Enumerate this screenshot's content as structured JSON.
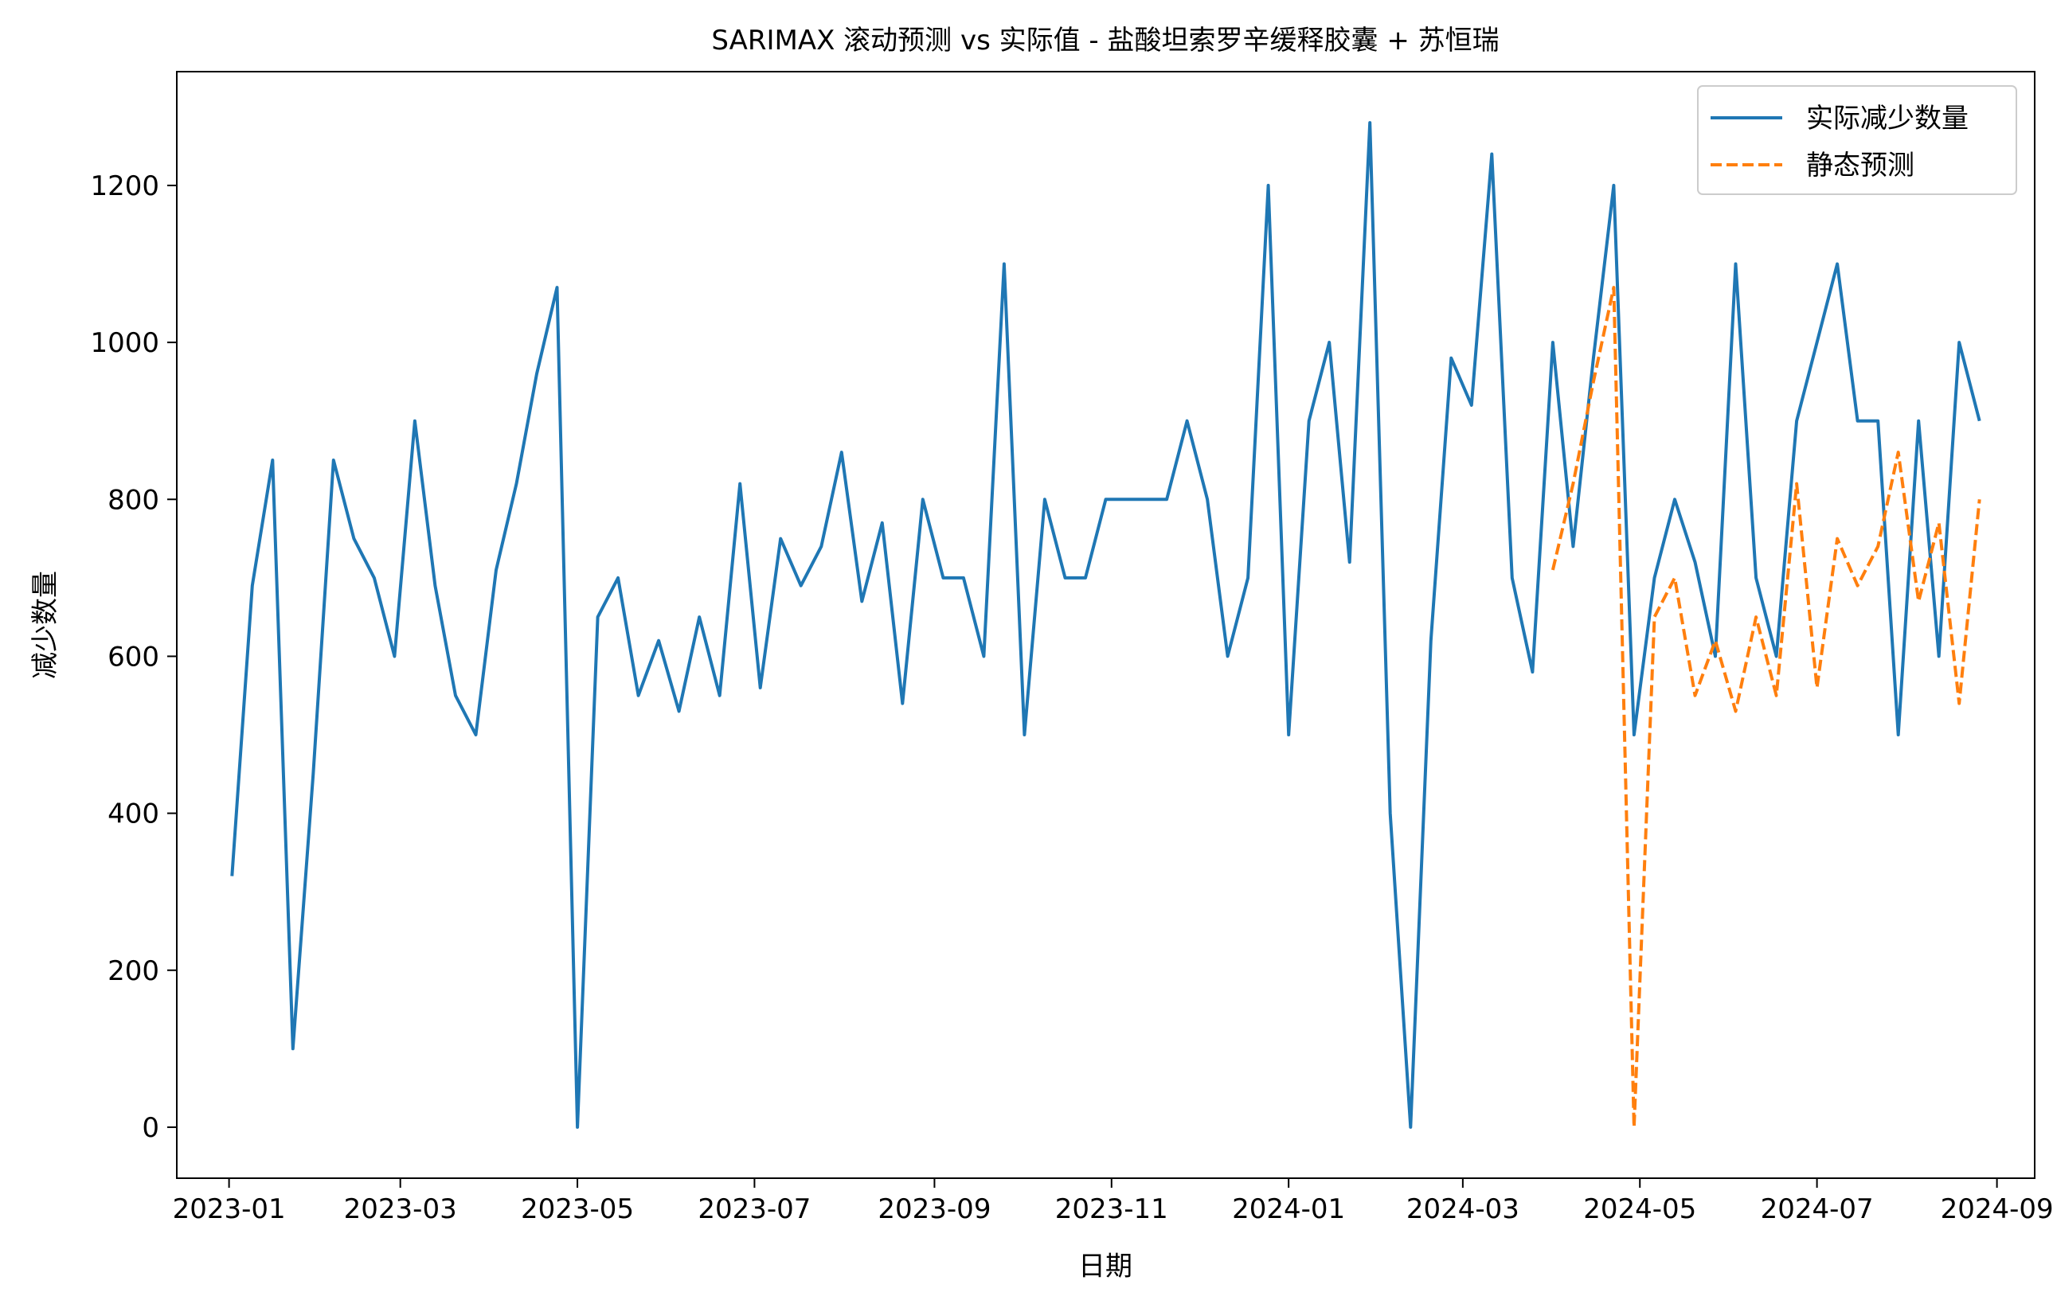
{
  "chart_data": {
    "type": "line",
    "title": "SARIMAX 滚动预测 vs 实际值 - 盐酸坦索罗辛缓释胶囊 + 苏恒瑞",
    "xlabel": "日期",
    "ylabel": "减少数量",
    "ylim": [
      -65,
      1345
    ],
    "xlim": [
      "2022-12-14",
      "2024-09-14"
    ],
    "yticks": [
      0,
      200,
      400,
      600,
      800,
      1000,
      1200
    ],
    "xticks": [
      "2023-01",
      "2023-03",
      "2023-05",
      "2023-07",
      "2023-09",
      "2023-11",
      "2024-01",
      "2024-03",
      "2024-05",
      "2024-07",
      "2024-09"
    ],
    "grid": false,
    "legend_position": "top-right",
    "series": [
      {
        "name": "实际减少数量",
        "color": "#1f77b4",
        "dash": "solid",
        "x": [
          "2023-01-02",
          "2023-01-09",
          "2023-01-16",
          "2023-01-23",
          "2023-01-30",
          "2023-02-06",
          "2023-02-13",
          "2023-02-20",
          "2023-02-27",
          "2023-03-06",
          "2023-03-13",
          "2023-03-20",
          "2023-03-27",
          "2023-04-03",
          "2023-04-10",
          "2023-04-17",
          "2023-04-24",
          "2023-05-01",
          "2023-05-08",
          "2023-05-15",
          "2023-05-22",
          "2023-05-29",
          "2023-06-05",
          "2023-06-12",
          "2023-06-19",
          "2023-06-26",
          "2023-07-03",
          "2023-07-10",
          "2023-07-17",
          "2023-07-24",
          "2023-07-31",
          "2023-08-07",
          "2023-08-14",
          "2023-08-21",
          "2023-08-28",
          "2023-09-04",
          "2023-09-11",
          "2023-09-18",
          "2023-09-25",
          "2023-10-02",
          "2023-10-09",
          "2023-10-16",
          "2023-10-23",
          "2023-10-30",
          "2023-11-06",
          "2023-11-13",
          "2023-11-20",
          "2023-11-27",
          "2023-12-04",
          "2023-12-11",
          "2023-12-18",
          "2023-12-25",
          "2024-01-01",
          "2024-01-08",
          "2024-01-15",
          "2024-01-22",
          "2024-01-29",
          "2024-02-05",
          "2024-02-12",
          "2024-02-19",
          "2024-02-26",
          "2024-03-04",
          "2024-03-11",
          "2024-03-18",
          "2024-03-25",
          "2024-04-01",
          "2024-04-08",
          "2024-04-15",
          "2024-04-22",
          "2024-04-29",
          "2024-05-06",
          "2024-05-13",
          "2024-05-20",
          "2024-05-27",
          "2024-06-03",
          "2024-06-10",
          "2024-06-17",
          "2024-06-24",
          "2024-07-01",
          "2024-07-08",
          "2024-07-15",
          "2024-07-22",
          "2024-07-29",
          "2024-08-05",
          "2024-08-12",
          "2024-08-19",
          "2024-08-26"
        ],
        "values": [
          320,
          690,
          850,
          100,
          450,
          850,
          750,
          700,
          600,
          900,
          690,
          550,
          500,
          710,
          820,
          960,
          1070,
          0,
          650,
          700,
          550,
          620,
          530,
          650,
          550,
          820,
          560,
          750,
          690,
          740,
          860,
          670,
          770,
          540,
          800,
          700,
          700,
          600,
          1100,
          500,
          800,
          700,
          700,
          800,
          800,
          800,
          800,
          900,
          800,
          600,
          700,
          1200,
          500,
          900,
          1000,
          720,
          1280,
          400,
          0,
          620,
          980,
          920,
          1240,
          700,
          580,
          1000,
          740,
          980,
          1200,
          500,
          700,
          800,
          720,
          600,
          1100,
          700,
          600,
          900,
          1000,
          1100,
          900,
          900,
          500,
          900,
          600,
          1000,
          900
        ]
      },
      {
        "name": "静态预测",
        "color": "#ff7f0e",
        "dash": "dashed",
        "x": [
          "2024-04-01",
          "2024-04-08",
          "2024-04-15",
          "2024-04-22",
          "2024-04-29",
          "2024-05-06",
          "2024-05-13",
          "2024-05-20",
          "2024-05-27",
          "2024-06-03",
          "2024-06-10",
          "2024-06-17",
          "2024-06-24",
          "2024-07-01",
          "2024-07-08",
          "2024-07-15",
          "2024-07-22",
          "2024-07-29",
          "2024-08-05",
          "2024-08-12",
          "2024-08-19",
          "2024-08-26"
        ],
        "values": [
          710,
          820,
          950,
          1070,
          0,
          650,
          700,
          550,
          620,
          530,
          650,
          550,
          820,
          560,
          750,
          690,
          740,
          860,
          670,
          770,
          540,
          800
        ]
      }
    ]
  }
}
